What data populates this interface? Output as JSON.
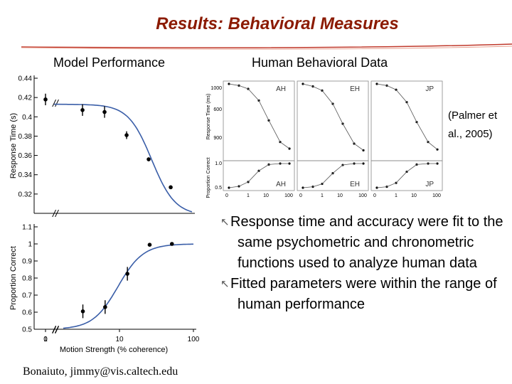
{
  "title": "Results: Behavioral Measures",
  "colors": {
    "title": "#8b1a00",
    "model_curve": "#3a5ea8",
    "rule": "#c0392b"
  },
  "headings": {
    "model": "Model Performance",
    "human": "Human Behavioral Data"
  },
  "citation": "(Palmer et al., 2005)",
  "bullets": [
    "Response time and accuracy were fit to the same psychometric and chronometric functions used to analyze human data",
    "Fitted parameters were within the range of human performance"
  ],
  "footer": "Bonaiuto, jimmy@vis.caltech.edu",
  "chart_data": [
    {
      "type": "scatter",
      "title": "Model Performance",
      "xlabel": "",
      "ylabel": "Response Time (s)",
      "xscale": "log",
      "xlim": [
        1,
        100
      ],
      "ylim": [
        0.3,
        0.44
      ],
      "yticks": [
        "0.32",
        "0.34",
        "0.36",
        "0.38",
        "0.4",
        "0.42",
        "0.44"
      ],
      "points": [
        {
          "x": 0,
          "y": 0.418,
          "err": 0.006
        },
        {
          "x": 3.2,
          "y": 0.407,
          "err": 0.006
        },
        {
          "x": 6.4,
          "y": 0.405,
          "err": 0.006
        },
        {
          "x": 12.8,
          "y": 0.381,
          "err": 0.004
        },
        {
          "x": 25.6,
          "y": 0.356,
          "err": 0.002
        },
        {
          "x": 51.2,
          "y": 0.327,
          "err": 0.001
        }
      ],
      "fit_curve": true
    },
    {
      "type": "scatter",
      "xlabel": "Motion Strength (% coherence)",
      "ylabel": "Proportion Correct",
      "xscale": "log",
      "xlim": [
        1,
        100
      ],
      "ylim": [
        0.5,
        1.1
      ],
      "xticks": [
        "0",
        "1",
        "10",
        "100"
      ],
      "yticks": [
        "0.5",
        "0.6",
        "0.7",
        "0.8",
        "0.9",
        "1",
        "1.1"
      ],
      "points": [
        {
          "x": 3.2,
          "y": 0.605,
          "err": 0.04
        },
        {
          "x": 6.4,
          "y": 0.63,
          "err": 0.04
        },
        {
          "x": 12.8,
          "y": 0.825,
          "err": 0.04
        },
        {
          "x": 25.6,
          "y": 0.995,
          "err": 0.006
        },
        {
          "x": 51.2,
          "y": 1.0,
          "err": 0.003
        }
      ],
      "fit_curve": true
    }
  ],
  "human_data": {
    "rt_ylabel": "Response Time (ms)",
    "rt_yticks": [
      "1000",
      "600",
      "900"
    ],
    "pc_ylabel": "Proportion Correct",
    "pc_yticks": [
      "1.0",
      "0.5"
    ],
    "xticks": [
      "0",
      "1",
      "10",
      "100"
    ],
    "subjects": [
      "AH",
      "EH",
      "JP"
    ],
    "rt_series": [
      [
        1000,
        990,
        970,
        900,
        780,
        650,
        610
      ],
      [
        1000,
        985,
        960,
        880,
        760,
        640,
        600
      ],
      [
        1000,
        990,
        965,
        890,
        770,
        650,
        605
      ]
    ],
    "pc_series": [
      [
        0.5,
        0.53,
        0.62,
        0.85,
        0.98,
        1.0,
        1.0
      ],
      [
        0.5,
        0.52,
        0.58,
        0.8,
        0.97,
        1.0,
        1.0
      ],
      [
        0.5,
        0.52,
        0.6,
        0.83,
        0.98,
        1.0,
        1.0
      ]
    ]
  }
}
